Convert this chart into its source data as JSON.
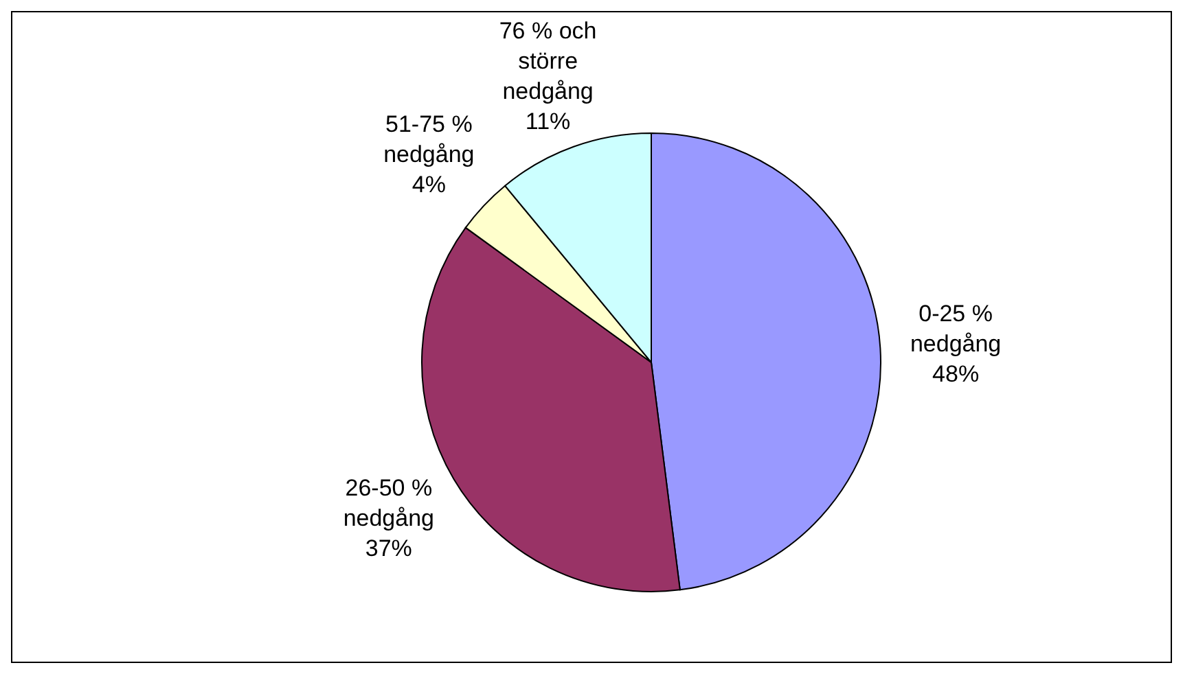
{
  "chart_data": {
    "type": "pie",
    "categories": [
      "0-25 % nedgång",
      "26-50 % nedgång",
      "51-75 % nedgång",
      "76 % och större nedgång"
    ],
    "values": [
      48,
      37,
      4,
      11
    ],
    "colors": [
      "#9999ff",
      "#993366",
      "#ffffcc",
      "#ccffff"
    ],
    "value_labels": [
      "48%",
      "37%",
      "4%",
      "11%"
    ]
  }
}
